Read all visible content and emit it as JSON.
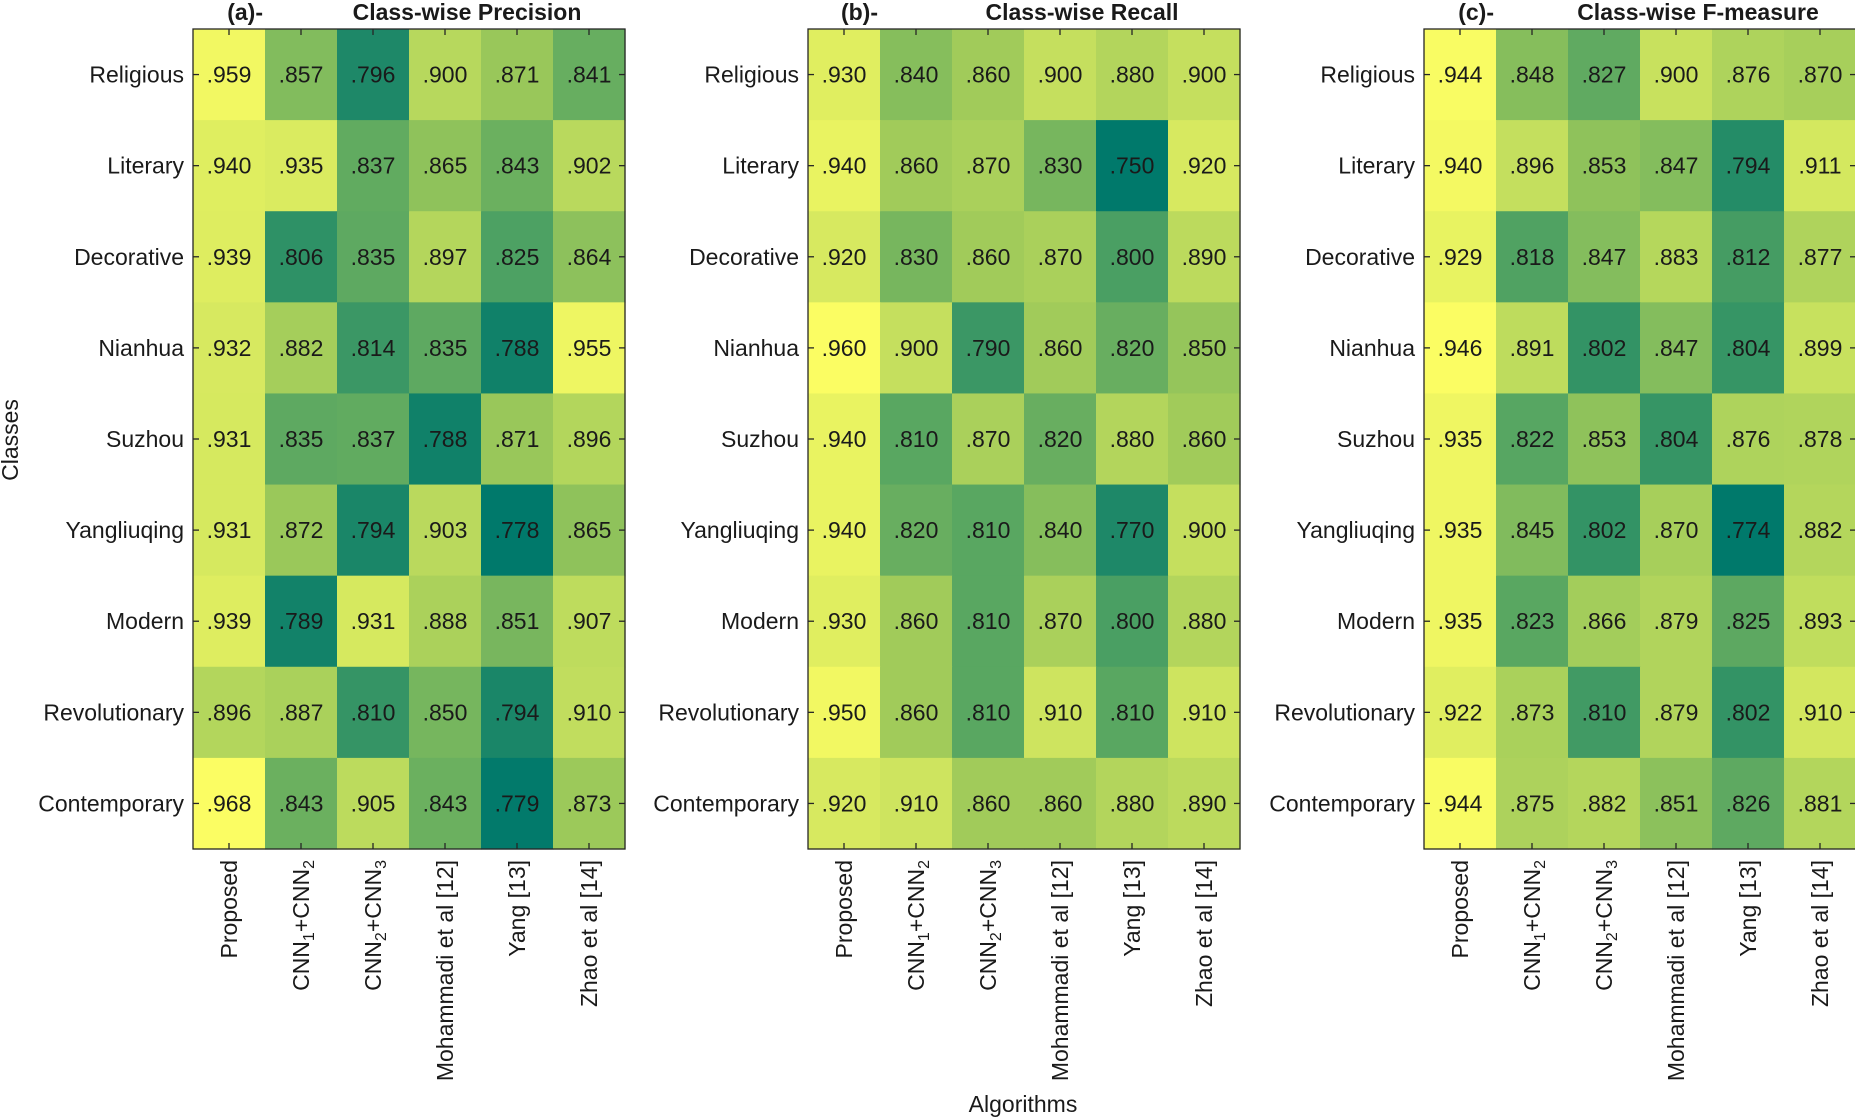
{
  "figure": {
    "xlabel": "Algorithms",
    "ylabel": "Classes"
  },
  "chart_data": [
    {
      "type": "heatmap",
      "panel": "(a)-",
      "title": "Class-wise Precision",
      "rows": [
        "Religious",
        "Literary",
        "Decorative",
        "Nianhua",
        "Suzhou",
        "Yangliuqing",
        "Modern",
        "Revolutionary",
        "Contemporary"
      ],
      "columns": [
        {
          "main": "Proposed",
          "sub": []
        },
        {
          "main": "CNN",
          "sub": [
            "1",
            "+CNN",
            "2"
          ]
        },
        {
          "main": "CNN",
          "sub": [
            "2",
            "+CNN",
            "3"
          ]
        },
        {
          "main": "Mohammadi et al [12]",
          "sub": []
        },
        {
          "main": "Yang [13]",
          "sub": []
        },
        {
          "main": "Zhao et al [14]",
          "sub": []
        }
      ],
      "values": [
        [
          0.959,
          0.857,
          0.796,
          0.9,
          0.871,
          0.841
        ],
        [
          0.94,
          0.935,
          0.837,
          0.865,
          0.843,
          0.902
        ],
        [
          0.939,
          0.806,
          0.835,
          0.897,
          0.825,
          0.864
        ],
        [
          0.932,
          0.882,
          0.814,
          0.835,
          0.788,
          0.955
        ],
        [
          0.931,
          0.835,
          0.837,
          0.788,
          0.871,
          0.896
        ],
        [
          0.931,
          0.872,
          0.794,
          0.903,
          0.778,
          0.865
        ],
        [
          0.939,
          0.789,
          0.931,
          0.888,
          0.851,
          0.907
        ],
        [
          0.896,
          0.887,
          0.81,
          0.85,
          0.794,
          0.91
        ],
        [
          0.968,
          0.843,
          0.905,
          0.843,
          0.779,
          0.873
        ]
      ],
      "colormap": {
        "low": "#00796b",
        "mid": "#9cc95a",
        "high": "#fbfd63"
      }
    },
    {
      "type": "heatmap",
      "panel": "(b)-",
      "title": "Class-wise Recall",
      "rows": [
        "Religious",
        "Literary",
        "Decorative",
        "Nianhua",
        "Suzhou",
        "Yangliuqing",
        "Modern",
        "Revolutionary",
        "Contemporary"
      ],
      "columns": [
        {
          "main": "Proposed",
          "sub": []
        },
        {
          "main": "CNN",
          "sub": [
            "1",
            "+CNN",
            "2"
          ]
        },
        {
          "main": "CNN",
          "sub": [
            "2",
            "+CNN",
            "3"
          ]
        },
        {
          "main": "Mohammadi et al [12]",
          "sub": []
        },
        {
          "main": "Yang [13]",
          "sub": []
        },
        {
          "main": "Zhao et al [14]",
          "sub": []
        }
      ],
      "values": [
        [
          0.93,
          0.84,
          0.86,
          0.9,
          0.88,
          0.9
        ],
        [
          0.94,
          0.86,
          0.87,
          0.83,
          0.75,
          0.92
        ],
        [
          0.92,
          0.83,
          0.86,
          0.87,
          0.8,
          0.89
        ],
        [
          0.96,
          0.9,
          0.79,
          0.86,
          0.82,
          0.85
        ],
        [
          0.94,
          0.81,
          0.87,
          0.82,
          0.88,
          0.86
        ],
        [
          0.94,
          0.82,
          0.81,
          0.84,
          0.77,
          0.9
        ],
        [
          0.93,
          0.86,
          0.81,
          0.87,
          0.8,
          0.88
        ],
        [
          0.95,
          0.86,
          0.81,
          0.91,
          0.81,
          0.91
        ],
        [
          0.92,
          0.91,
          0.86,
          0.86,
          0.88,
          0.89
        ]
      ],
      "colormap": {
        "low": "#00796b",
        "mid": "#9cc95a",
        "high": "#fbfd63"
      }
    },
    {
      "type": "heatmap",
      "panel": "(c)-",
      "title": "Class-wise F-measure",
      "rows": [
        "Religious",
        "Literary",
        "Decorative",
        "Nianhua",
        "Suzhou",
        "Yangliuqing",
        "Modern",
        "Revolutionary",
        "Contemporary"
      ],
      "columns": [
        {
          "main": "Proposed",
          "sub": []
        },
        {
          "main": "CNN",
          "sub": [
            "1",
            "+CNN",
            "2"
          ]
        },
        {
          "main": "CNN",
          "sub": [
            "2",
            "+CNN",
            "3"
          ]
        },
        {
          "main": "Mohammadi et al [12]",
          "sub": []
        },
        {
          "main": "Yang [13]",
          "sub": []
        },
        {
          "main": "Zhao et al [14]",
          "sub": []
        }
      ],
      "values": [
        [
          0.944,
          0.848,
          0.827,
          0.9,
          0.876,
          0.87
        ],
        [
          0.94,
          0.896,
          0.853,
          0.847,
          0.794,
          0.911
        ],
        [
          0.929,
          0.818,
          0.847,
          0.883,
          0.812,
          0.877
        ],
        [
          0.946,
          0.891,
          0.802,
          0.847,
          0.804,
          0.899
        ],
        [
          0.935,
          0.822,
          0.853,
          0.804,
          0.876,
          0.878
        ],
        [
          0.935,
          0.845,
          0.802,
          0.87,
          0.774,
          0.882
        ],
        [
          0.935,
          0.823,
          0.866,
          0.879,
          0.825,
          0.893
        ],
        [
          0.922,
          0.873,
          0.81,
          0.879,
          0.802,
          0.91
        ],
        [
          0.944,
          0.875,
          0.882,
          0.851,
          0.826,
          0.881
        ]
      ],
      "colormap": {
        "low": "#00796b",
        "mid": "#9cc95a",
        "high": "#fbfd63"
      }
    }
  ]
}
